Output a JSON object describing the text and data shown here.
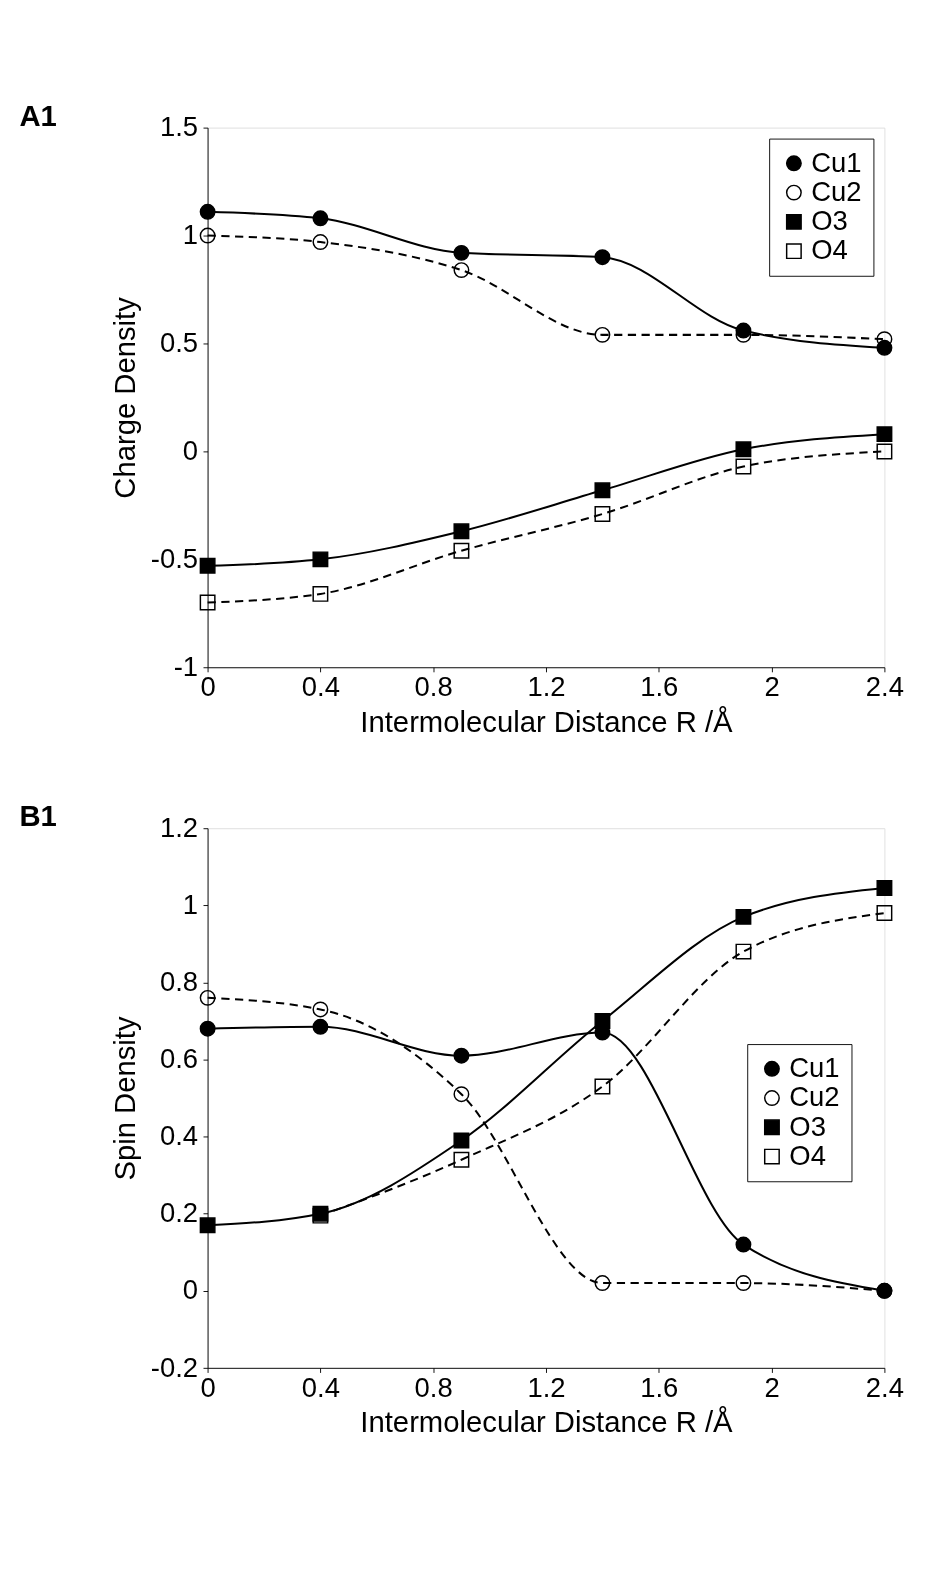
{
  "chart_data": [
    {
      "type": "line",
      "title": "A1",
      "xlabel": "Intermolecular Distance R /Å",
      "ylabel": "Charge Density",
      "x": [
        0,
        0.4,
        0.9,
        1.4,
        1.9,
        2.4
      ],
      "xlim": [
        0,
        2.4
      ],
      "xticks": [
        0,
        0.4,
        0.8,
        1.2,
        1.6,
        2,
        2.4
      ],
      "ylim": [
        -1,
        1.5
      ],
      "yticks": [
        -1,
        -0.5,
        0,
        0.5,
        1,
        1.5
      ],
      "grid": false,
      "legend": "top right",
      "series": [
        {
          "name": "Cu1",
          "color": "#000000",
          "marker": "circle",
          "line_style": "solid",
          "values": [
            1.11,
            1.08,
            0.92,
            0.9,
            0.56,
            0.48
          ]
        },
        {
          "name": "Cu2",
          "color": "#000000",
          "marker": "circle",
          "line_style": "dashed",
          "values": [
            1.0,
            0.97,
            0.84,
            0.54,
            0.54,
            0.52
          ]
        },
        {
          "name": "O3",
          "color": "#000000",
          "marker": "square",
          "line_style": "solid",
          "values": [
            -0.53,
            -0.5,
            -0.37,
            -0.18,
            0.01,
            0.08
          ]
        },
        {
          "name": "O4",
          "color": "#000000",
          "marker": "square",
          "line_style": "dashed",
          "values": [
            -0.7,
            -0.66,
            -0.46,
            -0.29,
            -0.07,
            0.0
          ]
        }
      ]
    },
    {
      "type": "line",
      "title": "B1",
      "xlabel": "Intermolecular Distance R /Å",
      "ylabel": "Spin Density",
      "x": [
        0,
        0.4,
        0.9,
        1.4,
        1.9,
        2.4
      ],
      "xlim": [
        0,
        2.4
      ],
      "xticks": [
        0,
        0.4,
        0.8,
        1.2,
        1.6,
        2,
        2.4
      ],
      "ylim": [
        -0.2,
        1.2
      ],
      "yticks": [
        -0.2,
        0,
        0.2,
        0.4,
        0.6,
        0.8,
        1,
        1.2
      ],
      "grid": false,
      "legend": "right",
      "series": [
        {
          "name": "Cu1",
          "color": "#000000",
          "marker": "circle",
          "line_style": "solid",
          "values": [
            0.68,
            0.685,
            0.61,
            0.67,
            0.12,
            0.0
          ]
        },
        {
          "name": "Cu2",
          "color": "#000000",
          "marker": "circle",
          "line_style": "dashed",
          "values": [
            0.76,
            0.73,
            0.51,
            0.02,
            0.02,
            0.0
          ]
        },
        {
          "name": "O3",
          "color": "#000000",
          "marker": "square",
          "line_style": "solid",
          "values": [
            0.17,
            0.2,
            0.39,
            0.7,
            0.97,
            1.045
          ]
        },
        {
          "name": "O4",
          "color": "#000000",
          "marker": "square",
          "line_style": "dashed",
          "values": [
            null,
            0.195,
            0.34,
            0.53,
            0.88,
            0.98
          ]
        }
      ]
    }
  ]
}
